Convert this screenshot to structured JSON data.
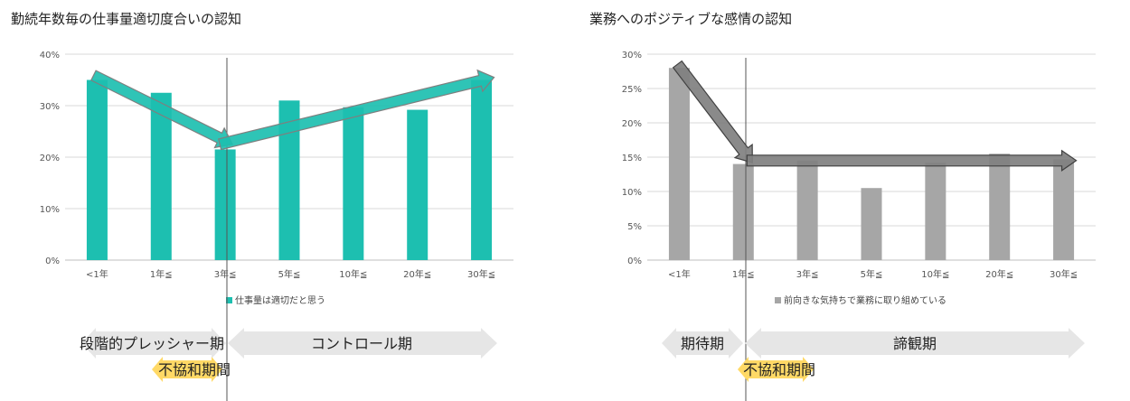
{
  "chart_data": [
    {
      "type": "bar",
      "title": "勤続年数毎の仕事量適切度合いの認知",
      "categories": [
        "<1年",
        "1年≦",
        "3年≦",
        "5年≦",
        "10年≦",
        "20年≦",
        "30年≦"
      ],
      "series": [
        {
          "name": "仕事量は適切だと思う",
          "values": [
            35,
            32.5,
            21.5,
            31,
            29.7,
            29.2,
            35
          ],
          "color": "#1dbfb0"
        }
      ],
      "ylim": [
        0,
        40
      ],
      "yticks": [
        "0%",
        "10%",
        "20%",
        "30%",
        "40%"
      ],
      "grid": true,
      "legend": "bottom",
      "phases": {
        "left_label": "段階的プレッシャー期",
        "right_label": "コントロール期",
        "middle_label": "不協和期間"
      }
    },
    {
      "type": "bar",
      "title": "業務へのポジティブな感情の認知",
      "categories": [
        "<1年",
        "1年≦",
        "3年≦",
        "5年≦",
        "10年≦",
        "20年≦",
        "30年≦"
      ],
      "series": [
        {
          "name": "前向きな気持ちで業務に取り組めている",
          "values": [
            28,
            14,
            14.5,
            10.5,
            14.2,
            15.5,
            14.7
          ],
          "color": "#a6a6a6"
        }
      ],
      "ylim": [
        0,
        30
      ],
      "yticks": [
        "0%",
        "5%",
        "10%",
        "15%",
        "20%",
        "25%",
        "30%"
      ],
      "grid": true,
      "legend": "bottom",
      "phases": {
        "left_label": "期待期",
        "right_label": "諦観期",
        "middle_label": "不協和期間"
      }
    }
  ]
}
